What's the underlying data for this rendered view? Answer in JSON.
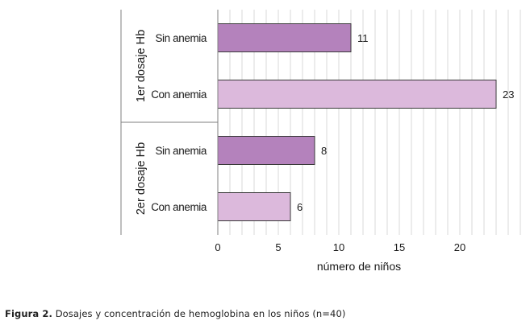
{
  "chart_data": {
    "type": "bar",
    "orientation": "horizontal",
    "groups": [
      {
        "label": "1er dosaje Hb",
        "bars": [
          {
            "label": "Sin anemia",
            "value": 11,
            "color": "#b482bc"
          },
          {
            "label": "Con anemia",
            "value": 23,
            "color": "#dcb9dc"
          }
        ]
      },
      {
        "label": "2er dosaje Hb",
        "bars": [
          {
            "label": "Sin anemia",
            "value": 8,
            "color": "#b482bc"
          },
          {
            "label": "Con anemia",
            "value": 6,
            "color": "#dcb9dc"
          }
        ]
      }
    ],
    "x_ticks": [
      0,
      5,
      10,
      15,
      20
    ],
    "xlim": [
      0,
      25
    ],
    "xlabel": "número de niños",
    "data_labels": true,
    "grid": "vertical",
    "grid_color": "#d9d9d9",
    "legend": "none"
  },
  "caption": {
    "label": "Figura 2.",
    "text": " Dosajes y concentración de hemoglobina en los niños (n=40)"
  }
}
